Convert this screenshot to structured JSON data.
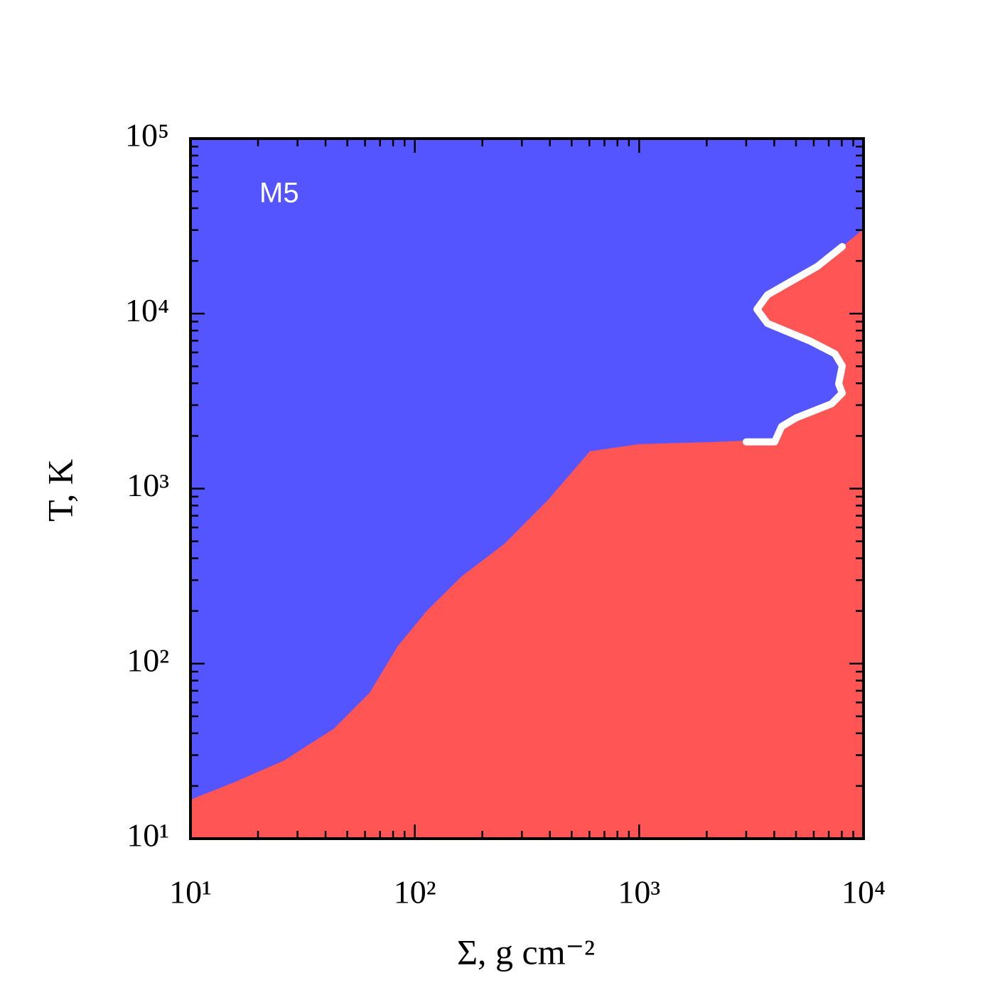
{
  "chart_data": {
    "type": "area",
    "xlabel": "Σ, g cm⁻²",
    "ylabel": "T, K",
    "annotation": "M5",
    "xscale": "log",
    "yscale": "log",
    "xlim": [
      10,
      10000
    ],
    "ylim": [
      10,
      100000
    ],
    "xticks": [
      {
        "value": 10,
        "label": "10¹"
      },
      {
        "value": 100,
        "label": "10²"
      },
      {
        "value": 1000,
        "label": "10³"
      },
      {
        "value": 10000,
        "label": "10⁴"
      }
    ],
    "yticks": [
      {
        "value": 10,
        "label": "10¹"
      },
      {
        "value": 100,
        "label": "10²"
      },
      {
        "value": 1000,
        "label": "10³"
      },
      {
        "value": 10000,
        "label": "10⁴"
      },
      {
        "value": 100000,
        "label": "10⁵"
      }
    ],
    "xminor": [
      20,
      30,
      40,
      50,
      60,
      70,
      80,
      90,
      200,
      300,
      400,
      500,
      600,
      700,
      800,
      900,
      2000,
      3000,
      4000,
      5000,
      6000,
      7000,
      8000,
      9000
    ],
    "yminor": [
      20,
      30,
      40,
      50,
      60,
      70,
      80,
      90,
      200,
      300,
      400,
      500,
      600,
      700,
      800,
      900,
      2000,
      3000,
      4000,
      5000,
      6000,
      7000,
      8000,
      9000,
      20000,
      30000,
      40000,
      50000,
      60000,
      70000,
      80000,
      90000
    ],
    "background_color": "#5555ff",
    "area": {
      "color": "#ff5555",
      "x": [
        10,
        15.7,
        26.2,
        43.6,
        62.8,
        84,
        113,
        162,
        251,
        389,
        603,
        1000,
        2089,
        3000,
        4020,
        4315,
        5000,
        7200,
        8040,
        7750,
        8040,
        7460,
        5780,
        3730,
        3350,
        3730,
        5000,
        6220,
        8040,
        10000
      ],
      "y": [
        16.7,
        21,
        28,
        42.5,
        68,
        126,
        200,
        316,
        484,
        851,
        1633,
        1795,
        1846,
        1880,
        1850,
        2265,
        2535,
        3050,
        3515,
        3970,
        5020,
        5890,
        6970,
        8790,
        10590,
        12790,
        15850,
        18580,
        24150,
        30500
      ]
    },
    "line": {
      "color": "#ffffff",
      "x": [
        3000,
        4020,
        4315,
        5000,
        7200,
        8040,
        7750,
        8040,
        7460,
        5780,
        3730,
        3350,
        3730,
        5000,
        6220,
        8040
      ],
      "y": [
        1850,
        1850,
        2265,
        2535,
        3050,
        3515,
        3970,
        5020,
        5890,
        6970,
        8790,
        10590,
        12790,
        15850,
        18580,
        24150
      ]
    }
  }
}
